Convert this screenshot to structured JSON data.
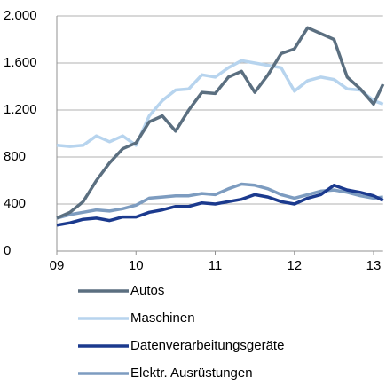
{
  "chart_data": {
    "type": "line",
    "x": [
      9,
      9.167,
      9.333,
      9.5,
      9.667,
      9.833,
      10,
      10.167,
      10.333,
      10.5,
      10.667,
      10.833,
      11,
      11.167,
      11.333,
      11.5,
      11.667,
      11.833,
      12,
      12.167,
      12.333,
      12.5,
      12.667,
      12.833,
      13,
      13.12
    ],
    "xlim": [
      9,
      13.12
    ],
    "xticks": [
      {
        "value": 9,
        "label": "09"
      },
      10,
      11,
      12,
      13
    ],
    "ylim": [
      0,
      2000
    ],
    "yticks": [
      0,
      400,
      800,
      {
        "value": 1200,
        "label": "1.200"
      },
      {
        "value": 1600,
        "label": "1.600"
      },
      {
        "value": 2000,
        "label": "2.000"
      }
    ],
    "grid": true,
    "series": [
      {
        "name": "Autos",
        "color": "#5b6f80",
        "values": [
          280,
          330,
          420,
          600,
          750,
          870,
          920,
          1100,
          1150,
          1020,
          1200,
          1350,
          1340,
          1480,
          1530,
          1350,
          1500,
          1680,
          1720,
          1900,
          1850,
          1800,
          1480,
          1380,
          1250,
          1420
        ]
      },
      {
        "name": "Maschinen",
        "color": "#b7d4ee",
        "values": [
          900,
          890,
          900,
          980,
          930,
          980,
          900,
          1150,
          1280,
          1370,
          1380,
          1500,
          1480,
          1560,
          1620,
          1600,
          1580,
          1560,
          1360,
          1450,
          1480,
          1460,
          1380,
          1370,
          1280,
          1250
        ]
      },
      {
        "name": "Datenverarbeitungsgeräte",
        "color": "#1b3a8e",
        "values": [
          220,
          240,
          270,
          280,
          260,
          290,
          290,
          330,
          350,
          380,
          380,
          410,
          400,
          420,
          440,
          480,
          460,
          420,
          400,
          450,
          480,
          560,
          520,
          500,
          470,
          430
        ]
      },
      {
        "name": "Elektr. Ausrüstungen",
        "color": "#7d9cc0",
        "values": [
          280,
          310,
          330,
          350,
          340,
          360,
          390,
          450,
          460,
          470,
          470,
          490,
          480,
          530,
          570,
          560,
          530,
          480,
          450,
          480,
          510,
          520,
          500,
          470,
          450,
          460
        ]
      }
    ]
  }
}
